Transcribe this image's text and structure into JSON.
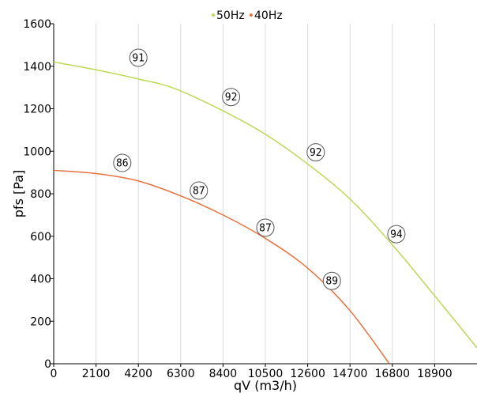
{
  "chart_data": {
    "type": "line",
    "title": "",
    "xlabel": "qV (m3/h)",
    "ylabel": "pfs [Pa]",
    "xlim": [
      0,
      21000
    ],
    "ylim": [
      0,
      1600
    ],
    "x_ticks": [
      0,
      2100,
      4200,
      6300,
      8400,
      10500,
      12600,
      14700,
      16800,
      18900
    ],
    "x_tick_labels": [
      "0",
      "2100",
      "4200",
      "6300",
      "8400",
      "10500",
      "12600",
      "14700",
      "16800",
      "18900"
    ],
    "y_ticks": [
      0,
      200,
      400,
      600,
      800,
      1000,
      1200,
      1400,
      1600
    ],
    "y_tick_labels": [
      "0",
      "200",
      "400",
      "600",
      "800",
      "1000",
      "1200",
      "1400",
      "1600"
    ],
    "grid": "vertical",
    "legend_position": "top-center",
    "series": [
      {
        "name": "50Hz",
        "color": "#bada55",
        "x": [
          0,
          2000,
          4200,
          6000,
          8400,
          10500,
          12600,
          14700,
          16800,
          18900,
          21000
        ],
        "y": [
          1420,
          1385,
          1340,
          1295,
          1190,
          1080,
          940,
          775,
          560,
          320,
          75
        ]
      },
      {
        "name": "40Hz",
        "color": "#e8703a",
        "x": [
          0,
          2100,
          4200,
          6300,
          8400,
          10500,
          12600,
          14700,
          16650
        ],
        "y": [
          910,
          895,
          860,
          790,
          700,
          590,
          450,
          250,
          0
        ]
      }
    ],
    "annotations": [
      {
        "text": "91",
        "x": 4200,
        "y": 1440
      },
      {
        "text": "92",
        "x": 8800,
        "y": 1255
      },
      {
        "text": "92",
        "x": 13000,
        "y": 995
      },
      {
        "text": "94",
        "x": 17000,
        "y": 610
      },
      {
        "text": "86",
        "x": 3400,
        "y": 945
      },
      {
        "text": "87",
        "x": 7200,
        "y": 815
      },
      {
        "text": "87",
        "x": 10500,
        "y": 640
      },
      {
        "text": "89",
        "x": 13800,
        "y": 390
      }
    ]
  }
}
